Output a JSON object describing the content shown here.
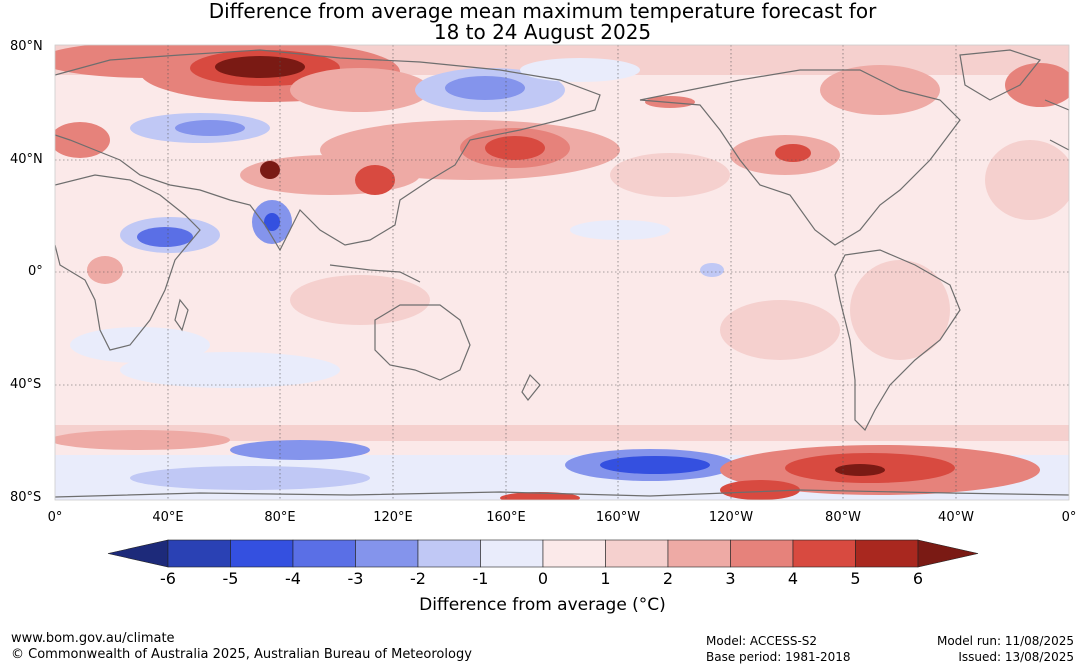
{
  "header": {
    "title_line1": "Difference from average mean maximum temperature forecast for",
    "title_line2": "18 to 24 August 2025"
  },
  "map": {
    "lat_labels": [
      "80°N",
      "40°N",
      "0°",
      "40°S",
      "80°S"
    ],
    "lon_labels": [
      "0°",
      "40°E",
      "80°E",
      "120°E",
      "160°E",
      "160°W",
      "120°W",
      "80°W",
      "40°W",
      "0°"
    ]
  },
  "colorbar": {
    "ticks": [
      "-6",
      "-5",
      "-4",
      "-3",
      "-2",
      "-1",
      "0",
      "1",
      "2",
      "3",
      "4",
      "5",
      "6"
    ],
    "label": "Difference from average (°C)",
    "colors": [
      "#1d2a7a",
      "#2a41b4",
      "#3450e0",
      "#5a6fe6",
      "#8494ec",
      "#c0c8f5",
      "#e9ecfb",
      "#fbe9e9",
      "#f5d0ce",
      "#eeaaa5",
      "#e6827b",
      "#d84a40",
      "#a9281f",
      "#7a1a14"
    ]
  },
  "footer": {
    "website": "www.bom.gov.au/climate",
    "copyright": "© Commonwealth of Australia 2025, Australian Bureau of Meteorology",
    "model": "Model: ACCESS-S2",
    "base_period": "Base period: 1981-2018",
    "model_run": "Model run: 11/08/2025",
    "issued": "Issued: 13/08/2025"
  }
}
